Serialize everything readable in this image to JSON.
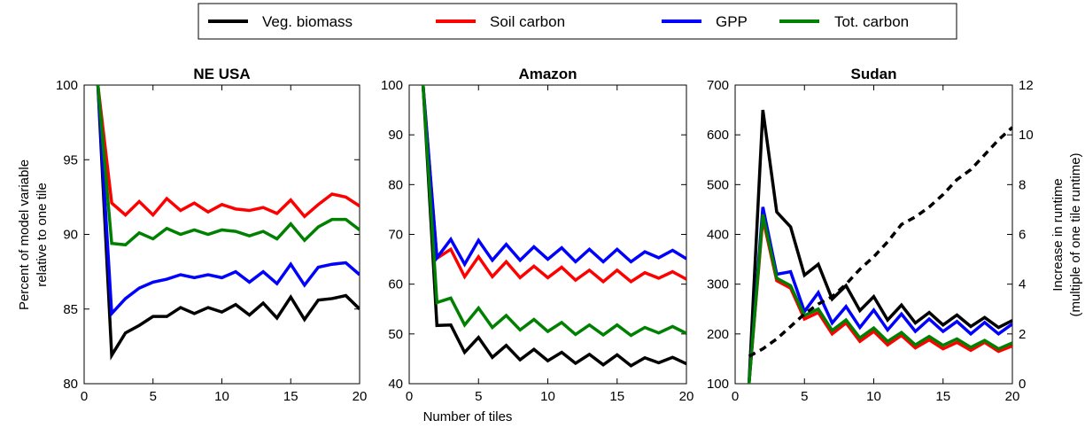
{
  "legend": {
    "entries": [
      {
        "label": "Veg. biomass",
        "color": "#000000"
      },
      {
        "label": "Soil carbon",
        "color": "#ff0000"
      },
      {
        "label": "GPP",
        "color": "#0000ff"
      },
      {
        "label": "Tot. carbon",
        "color": "#008000"
      }
    ],
    "placement": "top-center"
  },
  "axes": {
    "shared_xlabel": "Number of tiles",
    "left_ylabel_line1": "Percent of model variable",
    "left_ylabel_line2": "relative to one tile",
    "right_ylabel_line1": "Increase in runtime",
    "right_ylabel_line2": "(multiple of one tile runtime)"
  },
  "chart_data": [
    {
      "type": "line",
      "title": "NE USA",
      "xlim": [
        0,
        20
      ],
      "ylim": [
        80,
        100
      ],
      "xticks": [
        0,
        5,
        10,
        15,
        20
      ],
      "yticks": [
        80,
        85,
        90,
        95,
        100
      ],
      "x": [
        1,
        2,
        3,
        4,
        5,
        6,
        7,
        8,
        9,
        10,
        11,
        12,
        13,
        14,
        15,
        16,
        17,
        18,
        19,
        20
      ],
      "series": [
        {
          "name": "Veg. biomass",
          "color": "#000000",
          "values": [
            100,
            81.9,
            83.4,
            83.9,
            84.5,
            84.5,
            85.1,
            84.7,
            85.1,
            84.8,
            85.3,
            84.6,
            85.4,
            84.4,
            85.8,
            84.3,
            85.6,
            85.7,
            85.9,
            85.0
          ]
        },
        {
          "name": "Soil carbon",
          "color": "#ff0000",
          "values": [
            100,
            92.1,
            91.3,
            92.2,
            91.3,
            92.4,
            91.6,
            92.1,
            91.5,
            92.0,
            91.7,
            91.6,
            91.8,
            91.4,
            92.3,
            91.2,
            92.0,
            92.7,
            92.5,
            91.9
          ]
        },
        {
          "name": "GPP",
          "color": "#0000ff",
          "values": [
            100,
            84.7,
            85.7,
            86.4,
            86.8,
            87.0,
            87.3,
            87.1,
            87.3,
            87.1,
            87.5,
            86.8,
            87.5,
            86.7,
            88.0,
            86.6,
            87.8,
            88.0,
            88.1,
            87.3
          ]
        },
        {
          "name": "Tot. carbon",
          "color": "#008000",
          "values": [
            100,
            89.4,
            89.3,
            90.1,
            89.7,
            90.4,
            90.0,
            90.3,
            90.0,
            90.3,
            90.2,
            89.9,
            90.2,
            89.7,
            90.7,
            89.6,
            90.5,
            91.0,
            91.0,
            90.3
          ]
        }
      ]
    },
    {
      "type": "line",
      "title": "Amazon",
      "xlim": [
        0,
        20
      ],
      "ylim": [
        40,
        100
      ],
      "xticks": [
        0,
        5,
        10,
        15,
        20
      ],
      "yticks": [
        40,
        50,
        60,
        70,
        80,
        90,
        100
      ],
      "x": [
        1,
        2,
        3,
        4,
        5,
        6,
        7,
        8,
        9,
        10,
        11,
        12,
        13,
        14,
        15,
        16,
        17,
        18,
        19,
        20
      ],
      "series": [
        {
          "name": "Veg. biomass",
          "color": "#000000",
          "values": [
            100,
            51.7,
            51.8,
            46.3,
            49.3,
            45.3,
            47.7,
            44.8,
            46.9,
            44.6,
            46.3,
            44.1,
            45.9,
            43.8,
            45.8,
            43.6,
            45.2,
            44.2,
            45.3,
            44.0
          ]
        },
        {
          "name": "Soil carbon",
          "color": "#ff0000",
          "values": [
            100,
            65.2,
            67.0,
            61.5,
            65.5,
            61.5,
            64.5,
            61.3,
            63.6,
            61.3,
            63.4,
            60.8,
            62.8,
            60.5,
            62.8,
            60.5,
            62.3,
            61.2,
            62.5,
            61.0
          ]
        },
        {
          "name": "GPP",
          "color": "#0000ff",
          "values": [
            100,
            65.3,
            69.0,
            64.0,
            68.8,
            64.8,
            68.0,
            64.8,
            67.5,
            65.0,
            67.3,
            64.5,
            67.0,
            64.5,
            67.0,
            64.5,
            66.5,
            65.3,
            66.8,
            65.1
          ]
        },
        {
          "name": "Tot. carbon",
          "color": "#008000",
          "values": [
            100,
            56.3,
            57.2,
            51.8,
            55.2,
            51.3,
            53.7,
            50.8,
            52.9,
            50.5,
            52.3,
            49.9,
            51.8,
            49.8,
            51.8,
            49.7,
            51.3,
            50.2,
            51.5,
            50.1
          ]
        }
      ]
    },
    {
      "type": "line",
      "title": "Sudan",
      "xlim": [
        0,
        20
      ],
      "ylim": [
        100,
        700
      ],
      "xticks": [
        0,
        5,
        10,
        15,
        20
      ],
      "yticks": [
        100,
        200,
        300,
        400,
        500,
        600,
        700
      ],
      "y2lim": [
        0,
        12
      ],
      "y2ticks": [
        0,
        2,
        4,
        6,
        8,
        10,
        12
      ],
      "x": [
        1,
        2,
        3,
        4,
        5,
        6,
        7,
        8,
        9,
        10,
        11,
        12,
        13,
        14,
        15,
        16,
        17,
        18,
        19,
        20
      ],
      "series": [
        {
          "name": "Veg. biomass",
          "color": "#000000",
          "values": [
            100,
            650,
            445,
            415,
            318,
            340,
            270,
            297,
            247,
            275,
            228,
            258,
            222,
            243,
            218,
            238,
            215,
            233,
            213,
            227
          ]
        },
        {
          "name": "Soil carbon",
          "color": "#ff0000",
          "values": [
            100,
            432,
            307,
            292,
            230,
            243,
            200,
            222,
            185,
            205,
            178,
            197,
            172,
            188,
            170,
            183,
            167,
            183,
            165,
            176
          ]
        },
        {
          "name": "GPP",
          "color": "#0000ff",
          "values": [
            100,
            455,
            320,
            325,
            245,
            283,
            222,
            255,
            213,
            248,
            208,
            240,
            205,
            230,
            205,
            225,
            200,
            223,
            200,
            220
          ]
        },
        {
          "name": "Tot. carbon",
          "color": "#008000",
          "values": [
            100,
            440,
            312,
            297,
            237,
            250,
            207,
            228,
            192,
            212,
            185,
            203,
            178,
            195,
            177,
            190,
            173,
            187,
            170,
            182
          ]
        },
        {
          "name": "Runtime",
          "color": "#000000",
          "dashed": true,
          "axis": "right",
          "values": [
            1.1,
            1.4,
            1.8,
            2.3,
            2.8,
            3.2,
            3.5,
            4.0,
            4.6,
            5.1,
            5.7,
            6.4,
            6.7,
            7.1,
            7.6,
            8.2,
            8.6,
            9.2,
            9.8,
            10.3
          ]
        }
      ]
    }
  ]
}
